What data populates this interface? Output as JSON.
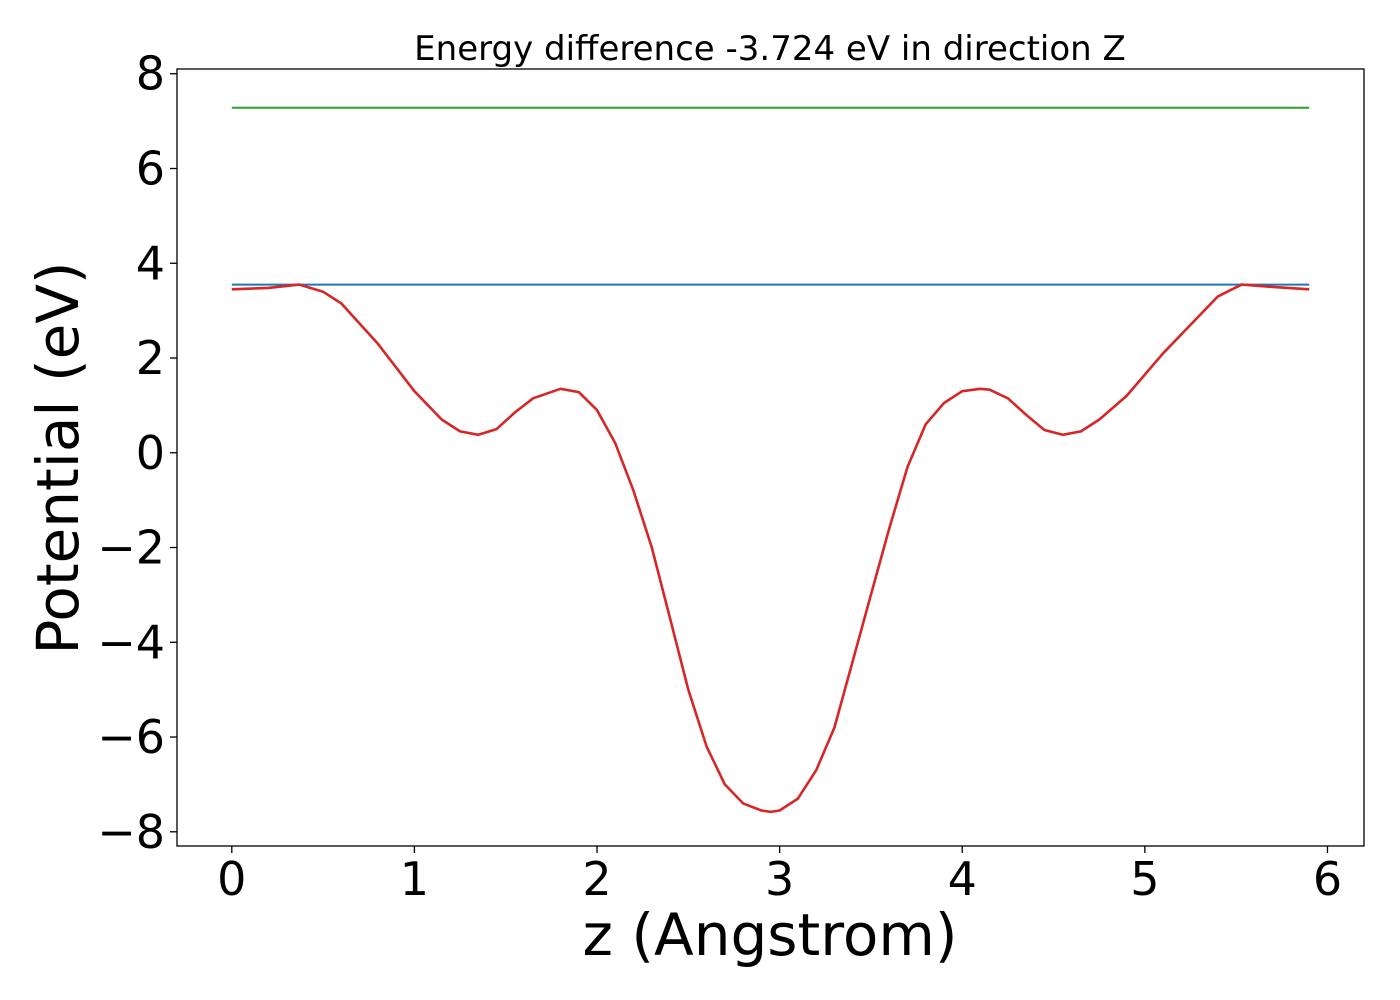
{
  "chart_data": {
    "type": "line",
    "title": "Energy difference -3.724 eV in direction Z",
    "xlabel": "z (Angstrom)",
    "ylabel": "Potential (eV)",
    "xlim": [
      -0.3,
      6.2
    ],
    "ylim": [
      -8.3,
      8.1
    ],
    "xticks": [
      0,
      1,
      2,
      3,
      4,
      5,
      6
    ],
    "xtick_labels": [
      "0",
      "1",
      "2",
      "3",
      "4",
      "5",
      "6"
    ],
    "yticks": [
      -8,
      -6,
      -4,
      -2,
      0,
      2,
      4,
      6,
      8
    ],
    "ytick_labels": [
      "−8",
      "−6",
      "−4",
      "−2",
      "0",
      "2",
      "4",
      "6",
      "8"
    ],
    "grid": false,
    "legend": "none",
    "series": [
      {
        "color": "#2ca02c",
        "x": [
          0,
          5.9
        ],
        "y": [
          7.28,
          7.28
        ]
      },
      {
        "color": "#1f77b4",
        "x": [
          0,
          5.9
        ],
        "y": [
          3.55,
          3.55
        ]
      },
      {
        "color": "#d62728",
        "x": [
          0,
          0.2,
          0.37,
          0.5,
          0.6,
          0.8,
          1.0,
          1.15,
          1.25,
          1.35,
          1.45,
          1.55,
          1.65,
          1.8,
          1.9,
          2.0,
          2.1,
          2.2,
          2.3,
          2.4,
          2.5,
          2.6,
          2.7,
          2.8,
          2.9,
          2.95,
          3.0,
          3.1,
          3.2,
          3.3,
          3.4,
          3.5,
          3.6,
          3.7,
          3.8,
          3.9,
          4.0,
          4.1,
          4.15,
          4.25,
          4.35,
          4.45,
          4.55,
          4.65,
          4.75,
          4.9,
          5.1,
          5.3,
          5.4,
          5.53,
          5.7,
          5.9
        ],
        "y": [
          3.45,
          3.48,
          3.55,
          3.4,
          3.15,
          2.3,
          1.3,
          0.7,
          0.45,
          0.38,
          0.5,
          0.85,
          1.15,
          1.35,
          1.28,
          0.9,
          0.2,
          -0.8,
          -2.0,
          -3.5,
          -5.0,
          -6.2,
          -7.0,
          -7.4,
          -7.55,
          -7.58,
          -7.55,
          -7.3,
          -6.7,
          -5.8,
          -4.4,
          -3.0,
          -1.6,
          -0.3,
          0.6,
          1.05,
          1.3,
          1.35,
          1.33,
          1.15,
          0.8,
          0.48,
          0.38,
          0.45,
          0.7,
          1.2,
          2.1,
          2.9,
          3.3,
          3.55,
          3.5,
          3.45
        ]
      }
    ]
  }
}
